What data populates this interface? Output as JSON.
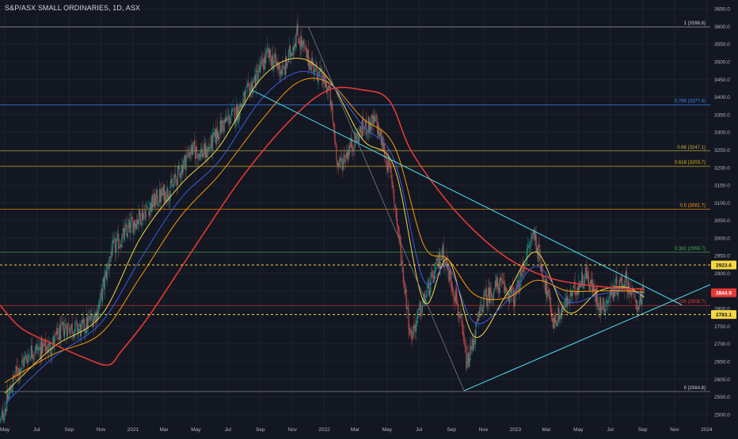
{
  "header": {
    "title": "S&P/ASX SMALL ORDINARIES, 1D, ASX"
  },
  "colors": {
    "background": "#131722",
    "grid": "#1e2230",
    "candle_up": "#26a69a",
    "candle_down": "#ef5350",
    "ma_fast": "#f5d742",
    "ma_mid": "#3b5bdb",
    "ma_slow": "#ff9800",
    "ma_long": "#e53935",
    "trendline": "#4dd0e1",
    "fib_line": "#787b86",
    "axis_text": "#b2b5be"
  },
  "chart_data": {
    "type": "candlestick",
    "title": "S&P/ASX SMALL ORDINARIES, 1D, ASX",
    "ylim": [
      2475,
      3675
    ],
    "y_ticks": [
      3650,
      3600,
      3550,
      3500,
      3450,
      3400,
      3350,
      3300,
      3250,
      3200,
      3150,
      3100,
      3050,
      3000,
      2950,
      2900,
      2850,
      2800,
      2750,
      2700,
      2650,
      2600,
      2550,
      2500
    ],
    "y_tick_labels": [
      "3650.0",
      "3600.0",
      "3550.0",
      "3500.0",
      "3450.0",
      "3400.0",
      "3350.0",
      "3300.0",
      "3250.0",
      "3200.0",
      "3150.0",
      "3100.0",
      "3050.0",
      "3000.0",
      "2950.0",
      "2900.0",
      "2850.0",
      "2800.0",
      "2750.0",
      "2700.0",
      "2650.0",
      "2600.0",
      "2550.0",
      "2500.0"
    ],
    "x_ticks": [
      "May",
      "Jul",
      "Sep",
      "Nov",
      "2021",
      "Mar",
      "May",
      "Jul",
      "Sep",
      "Nov",
      "2022",
      "Mar",
      "May",
      "Jul",
      "Sep",
      "Nov",
      "2023",
      "Mar",
      "May",
      "Jul",
      "Sep",
      "Nov",
      "2024"
    ],
    "x_range": [
      "2020-04-22",
      "2024-01-08"
    ],
    "x_tick_dates": [
      "2020-05-01",
      "2020-07-01",
      "2020-09-01",
      "2020-11-01",
      "2021-01-01",
      "2021-03-01",
      "2021-05-01",
      "2021-07-01",
      "2021-09-01",
      "2021-11-01",
      "2022-01-01",
      "2022-03-01",
      "2022-05-01",
      "2022-07-01",
      "2022-09-01",
      "2022-11-01",
      "2023-01-01",
      "2023-03-01",
      "2023-05-01",
      "2023-07-01",
      "2023-09-01",
      "2023-11-01",
      "2024-01-01"
    ],
    "close_path": [
      [
        "2020-04-22",
        2470
      ],
      [
        "2020-05-20",
        2610
      ],
      [
        "2020-06-20",
        2680
      ],
      [
        "2020-07-25",
        2690
      ],
      [
        "2020-08-25",
        2750
      ],
      [
        "2020-09-25",
        2740
      ],
      [
        "2020-10-25",
        2790
      ],
      [
        "2020-11-20",
        2960
      ],
      [
        "2020-12-31",
        3040
      ],
      [
        "2021-02-15",
        3110
      ],
      [
        "2021-03-15",
        3140
      ],
      [
        "2021-04-20",
        3250
      ],
      [
        "2021-05-20",
        3240
      ],
      [
        "2021-06-20",
        3320
      ],
      [
        "2021-07-20",
        3360
      ],
      [
        "2021-08-25",
        3460
      ],
      [
        "2021-09-15",
        3520
      ],
      [
        "2021-10-15",
        3470
      ],
      [
        "2021-11-10",
        3580
      ],
      [
        "2021-11-30",
        3510
      ],
      [
        "2021-12-20",
        3470
      ],
      [
        "2022-01-10",
        3420
      ],
      [
        "2022-01-28",
        3200
      ],
      [
        "2022-02-20",
        3260
      ],
      [
        "2022-03-15",
        3310
      ],
      [
        "2022-04-10",
        3330
      ],
      [
        "2022-05-10",
        3170
      ],
      [
        "2022-06-15",
        2720
      ],
      [
        "2022-07-20",
        2860
      ],
      [
        "2022-08-15",
        2960
      ],
      [
        "2022-09-10",
        2830
      ],
      [
        "2022-10-01",
        2640
      ],
      [
        "2022-10-31",
        2820
      ],
      [
        "2022-11-30",
        2870
      ],
      [
        "2022-12-31",
        2830
      ],
      [
        "2023-02-05",
        3020
      ],
      [
        "2023-03-15",
        2760
      ],
      [
        "2023-04-15",
        2830
      ],
      [
        "2023-05-15",
        2900
      ],
      [
        "2023-06-15",
        2800
      ],
      [
        "2023-07-10",
        2860
      ],
      [
        "2023-07-31",
        2880
      ],
      [
        "2023-08-20",
        2810
      ],
      [
        "2023-09-04",
        2845
      ]
    ],
    "moving_averages": [
      {
        "color_key": "ma_fast",
        "points": [
          [
            "2020-05-01",
            2560
          ],
          [
            "2020-08-01",
            2690
          ],
          [
            "2020-11-01",
            2780
          ],
          [
            "2021-01-15",
            3000
          ],
          [
            "2021-04-01",
            3150
          ],
          [
            "2021-06-15",
            3260
          ],
          [
            "2021-09-01",
            3450
          ],
          [
            "2021-11-10",
            3510
          ],
          [
            "2022-01-10",
            3450
          ],
          [
            "2022-03-15",
            3280
          ],
          [
            "2022-05-15",
            3200
          ],
          [
            "2022-07-10",
            2820
          ],
          [
            "2022-08-25",
            2940
          ],
          [
            "2022-10-15",
            2720
          ],
          [
            "2022-12-15",
            2840
          ],
          [
            "2023-02-10",
            2960
          ],
          [
            "2023-04-10",
            2790
          ],
          [
            "2023-06-10",
            2850
          ],
          [
            "2023-08-01",
            2860
          ],
          [
            "2023-09-04",
            2832
          ]
        ]
      },
      {
        "color_key": "ma_mid",
        "points": [
          [
            "2020-05-01",
            2530
          ],
          [
            "2020-08-01",
            2660
          ],
          [
            "2020-11-01",
            2760
          ],
          [
            "2021-01-15",
            2940
          ],
          [
            "2021-04-01",
            3110
          ],
          [
            "2021-06-15",
            3220
          ],
          [
            "2021-09-01",
            3390
          ],
          [
            "2021-11-10",
            3470
          ],
          [
            "2022-01-10",
            3440
          ],
          [
            "2022-03-15",
            3320
          ],
          [
            "2022-05-15",
            3220
          ],
          [
            "2022-07-10",
            2880
          ],
          [
            "2022-08-25",
            2920
          ],
          [
            "2022-10-15",
            2760
          ],
          [
            "2022-12-15",
            2820
          ],
          [
            "2023-02-10",
            2920
          ],
          [
            "2023-04-10",
            2820
          ],
          [
            "2023-06-10",
            2840
          ],
          [
            "2023-08-01",
            2850
          ],
          [
            "2023-09-04",
            2838
          ]
        ]
      },
      {
        "color_key": "ma_slow",
        "points": [
          [
            "2020-05-01",
            2590
          ],
          [
            "2020-08-01",
            2670
          ],
          [
            "2020-11-01",
            2730
          ],
          [
            "2021-01-15",
            2890
          ],
          [
            "2021-04-01",
            3060
          ],
          [
            "2021-06-15",
            3180
          ],
          [
            "2021-09-01",
            3330
          ],
          [
            "2021-11-10",
            3440
          ],
          [
            "2022-01-10",
            3440
          ],
          [
            "2022-03-15",
            3340
          ],
          [
            "2022-05-15",
            3260
          ],
          [
            "2022-07-10",
            2980
          ],
          [
            "2022-08-25",
            2940
          ],
          [
            "2022-10-15",
            2840
          ],
          [
            "2022-12-15",
            2830
          ],
          [
            "2023-02-10",
            2880
          ],
          [
            "2023-04-10",
            2850
          ],
          [
            "2023-06-10",
            2850
          ],
          [
            "2023-08-01",
            2850
          ],
          [
            "2023-09-04",
            2846
          ]
        ]
      },
      {
        "color_key": "ma_long",
        "points": [
          [
            "2020-04-22",
            2810
          ],
          [
            "2020-06-01",
            2745
          ],
          [
            "2020-08-01",
            2700
          ],
          [
            "2020-10-01",
            2660
          ],
          [
            "2020-11-15",
            2640
          ],
          [
            "2020-12-10",
            2680
          ],
          [
            "2021-02-01",
            2780
          ],
          [
            "2021-05-01",
            2980
          ],
          [
            "2021-08-01",
            3180
          ],
          [
            "2021-11-01",
            3340
          ],
          [
            "2022-01-10",
            3420
          ],
          [
            "2022-03-15",
            3420
          ],
          [
            "2022-05-05",
            3390
          ],
          [
            "2022-06-15",
            3250
          ],
          [
            "2022-08-15",
            3120
          ],
          [
            "2022-10-15",
            3020
          ],
          [
            "2022-12-20",
            2940
          ],
          [
            "2023-03-01",
            2890
          ],
          [
            "2023-05-01",
            2870
          ],
          [
            "2023-07-01",
            2860
          ],
          [
            "2023-09-04",
            2855
          ]
        ]
      }
    ],
    "horizontal_levels": [
      {
        "label": "1 (3598.6)",
        "value": 3598.6,
        "color": "#9598a1"
      },
      {
        "label": "0.786 (3377.4)",
        "value": 3377.4,
        "color": "#3b82f6"
      },
      {
        "label": "0.66 (3247.1)",
        "value": 3247.1,
        "color": "#c9b03a"
      },
      {
        "label": "0.618 (3203.7)",
        "value": 3203.7,
        "color": "#e0b90b"
      },
      {
        "label": "0.5 (3081.7)",
        "value": 3081.7,
        "color": "#ff9800"
      },
      {
        "label": "0.382 (2959.7)",
        "value": 2959.7,
        "color": "#4caf50"
      },
      {
        "label": "0.236 (2808.7)",
        "value": 2808.7,
        "color": "#e53935"
      },
      {
        "label": "0 (2564.8)",
        "value": 2564.8,
        "color": "#9598a1"
      }
    ],
    "dashed_levels": [
      {
        "label": "2923.6",
        "value": 2923.6,
        "color": "#f5d742"
      },
      {
        "label": "2783.1",
        "value": 2783.1,
        "color": "#f5d742"
      }
    ],
    "price_badge": {
      "label": "2844.9",
      "value": 2844.9,
      "color": "#e53935"
    },
    "trendlines": [
      {
        "from": [
          "2021-08-15",
          3420
        ],
        "to": [
          "2023-11-15",
          2810
        ],
        "color_key": "trendline"
      },
      {
        "from": [
          "2022-09-25",
          2567
        ],
        "to": [
          "2024-01-08",
          2868
        ],
        "color_key": "trendline"
      },
      {
        "from": [
          "2021-12-02",
          3598
        ],
        "to": [
          "2022-09-25",
          2567
        ],
        "color_key": "fib_line"
      }
    ]
  }
}
